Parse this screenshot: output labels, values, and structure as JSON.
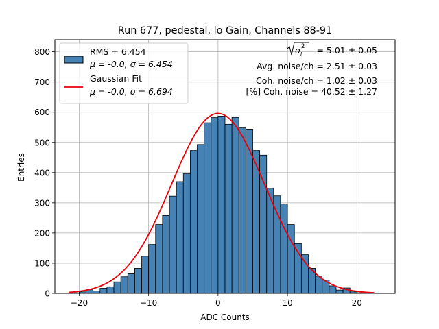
{
  "chart_data": {
    "type": "bar",
    "title": "Run 677, pedestal, lo Gain, Channels 88-91",
    "xlabel": "ADC Counts",
    "ylabel": "Entries",
    "xlim": [
      -23.5,
      25.5
    ],
    "ylim": [
      0,
      840
    ],
    "xticks": [
      -20,
      -10,
      0,
      10,
      20
    ],
    "xtick_labels": [
      "−20",
      "−10",
      "0",
      "10",
      "20"
    ],
    "yticks": [
      0,
      100,
      200,
      300,
      400,
      500,
      600,
      700,
      800
    ],
    "ytick_labels": [
      "0",
      "100",
      "200",
      "300",
      "400",
      "500",
      "600",
      "700",
      "800"
    ],
    "grid": true,
    "colors": {
      "bar_fill": "#4682b4",
      "bar_edge": "#000000",
      "fit_line": "#e8000b",
      "grid": "#b0b0b0"
    },
    "histogram": {
      "name": "RMS = 6.454",
      "bin_width": 1,
      "bin_starts": [
        -21,
        -20,
        -19,
        -18,
        -17,
        -16,
        -15,
        -14,
        -13,
        -12,
        -11,
        -10,
        -9,
        -8,
        -7,
        -6,
        -5,
        -4,
        -3,
        -2,
        -1,
        0,
        1,
        2,
        3,
        4,
        5,
        6,
        7,
        8,
        9,
        10,
        11,
        12,
        13,
        14,
        15,
        16,
        17,
        18,
        19,
        20,
        21
      ],
      "values": [
        2,
        5,
        12,
        8,
        17,
        22,
        38,
        55,
        65,
        83,
        123,
        162,
        228,
        258,
        322,
        370,
        396,
        473,
        493,
        565,
        582,
        587,
        560,
        583,
        548,
        544,
        473,
        458,
        348,
        323,
        296,
        228,
        165,
        128,
        83,
        57,
        44,
        25,
        11,
        18,
        5,
        2,
        2
      ]
    },
    "fit": {
      "name": "Gaussian Fit",
      "mu": 0.0,
      "sigma": 6.694,
      "amplitude": 596,
      "x_range": [
        -21.5,
        22.5
      ]
    },
    "legend": {
      "position": "upper-left",
      "entries": [
        {
          "kind": "patch",
          "line1": "RMS = 6.454",
          "line2": "μ = -0.0, σ = 6.454"
        },
        {
          "kind": "line",
          "line1": "Gaussian Fit",
          "line2": "μ = -0.0, σ = 6.694"
        }
      ]
    },
    "annotations": {
      "position": "upper-right",
      "sigma_value": "= 5.01 ± 0.05",
      "sigma_symbol": "σ",
      "sigma_sub": "i",
      "sigma_sup": "2",
      "lines": [
        "Avg. noise/ch = 2.51 ± 0.03",
        "Coh. noise/ch = 1.02 ± 0.03",
        "[%] Coh. noise = 40.52 ± 1.27"
      ]
    }
  }
}
